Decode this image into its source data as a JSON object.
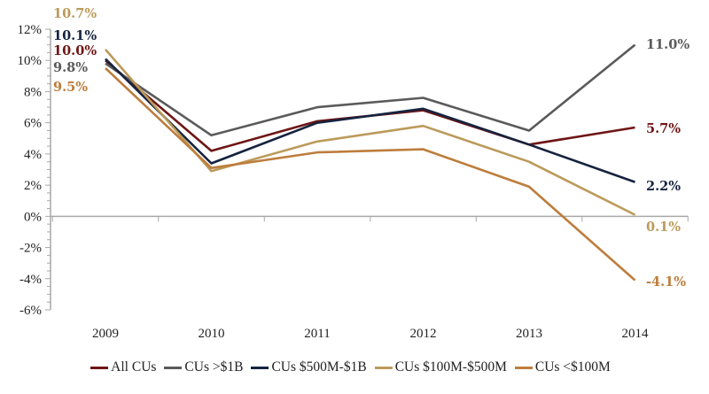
{
  "chart_data": {
    "type": "line",
    "title": "",
    "xlabel": "",
    "ylabel": "",
    "categories": [
      "2009",
      "2010",
      "2011",
      "2012",
      "2013",
      "2014"
    ],
    "ylim": [
      -6,
      12
    ],
    "yticks": [
      -6,
      -4,
      -2,
      0,
      2,
      4,
      6,
      8,
      10,
      12
    ],
    "ytick_labels": [
      "-6%",
      "-4%",
      "-2%",
      "0%",
      "2%",
      "4%",
      "6%",
      "8%",
      "10%",
      "12%"
    ],
    "grid": false,
    "legend_position": "bottom",
    "series": [
      {
        "name": "All CUs",
        "color": "#6e1515",
        "values": [
          10.0,
          4.2,
          6.1,
          6.8,
          4.6,
          5.7
        ],
        "start_label": "10.0%",
        "end_label": "5.7%"
      },
      {
        "name": "CUs >$1B",
        "color": "#5a5a5a",
        "values": [
          9.8,
          5.2,
          7.0,
          7.6,
          5.5,
          11.0
        ],
        "start_label": "9.8%",
        "end_label": "11.0%"
      },
      {
        "name": "CUs $500M-$1B",
        "color": "#15233f",
        "values": [
          10.1,
          3.4,
          6.0,
          6.9,
          4.6,
          2.2
        ],
        "start_label": "10.1%",
        "end_label": "2.2%"
      },
      {
        "name": "CUs $100M-$500M",
        "color": "#bb9a5a",
        "values": [
          10.7,
          2.9,
          4.8,
          5.8,
          3.5,
          0.1
        ],
        "start_label": "10.7%",
        "end_label": "0.1%"
      },
      {
        "name": "CUs <$100M",
        "color": "#bd7d3c",
        "values": [
          9.5,
          3.1,
          4.1,
          4.3,
          1.9,
          -4.1
        ],
        "start_label": "9.5%",
        "end_label": "-4.1%"
      }
    ]
  }
}
